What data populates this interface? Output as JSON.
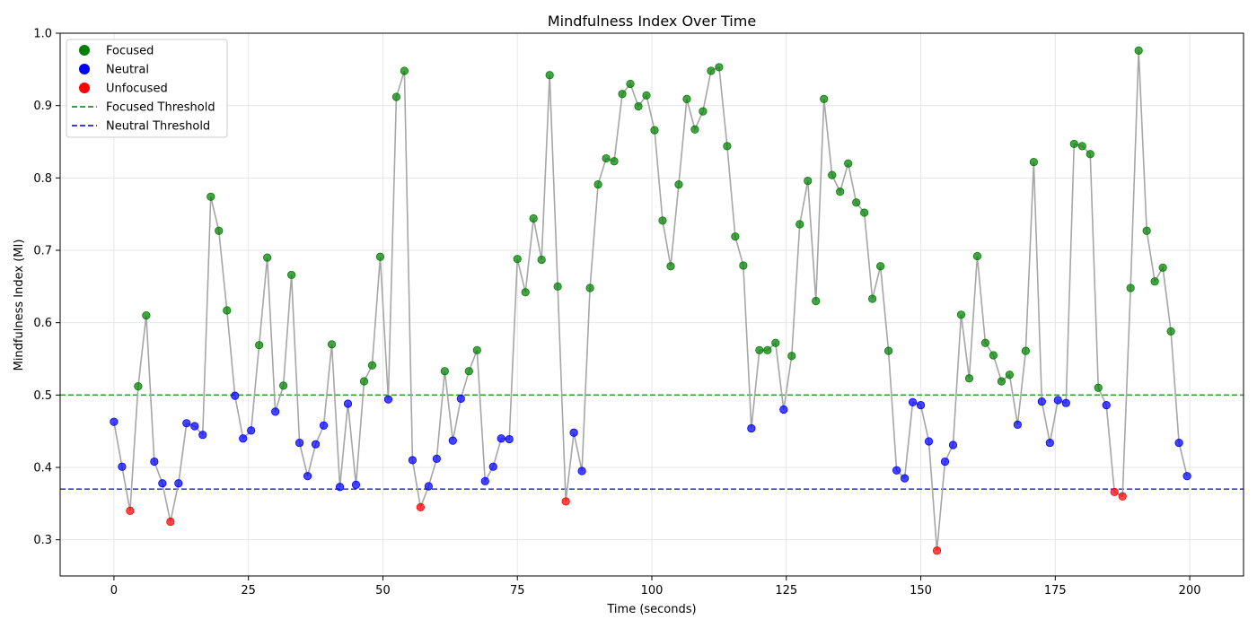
{
  "chart_data": {
    "type": "scatter",
    "title": "Mindfulness Index Over Time",
    "xlabel": "Time (seconds)",
    "ylabel": "Mindfulness Index (MI)",
    "xlim": [
      -10,
      210
    ],
    "ylim": [
      0.25,
      1.0
    ],
    "x_ticks": [
      0,
      25,
      50,
      75,
      100,
      125,
      150,
      175,
      200
    ],
    "y_ticks": [
      0.3,
      0.4,
      0.5,
      0.6,
      0.7,
      0.8,
      0.9,
      1.0
    ],
    "x_tick_labels": [
      "0",
      "25",
      "50",
      "75",
      "100",
      "125",
      "150",
      "175",
      "200"
    ],
    "y_tick_labels": [
      "0.3",
      "0.4",
      "0.5",
      "0.6",
      "0.7",
      "0.8",
      "0.9",
      "1.0"
    ],
    "grid": true,
    "legend_position": "top-left",
    "line_color": "#a6a6a6",
    "categories": {
      "focused": {
        "label": "Focused",
        "color": "#008000"
      },
      "neutral": {
        "label": "Neutral",
        "color": "#0000ff"
      },
      "unfocused": {
        "label": "Unfocused",
        "color": "#ff0000"
      }
    },
    "thresholds": [
      {
        "name": "Focused Threshold",
        "value": 0.5,
        "color": "#008000"
      },
      {
        "name": "Neutral Threshold",
        "value": 0.37,
        "color": "#0000c0"
      }
    ],
    "time_start": 0,
    "time_step": 1.5,
    "values": [
      0.463,
      0.401,
      0.34,
      0.512,
      0.61,
      0.408,
      0.378,
      0.325,
      0.378,
      0.461,
      0.457,
      0.445,
      0.774,
      0.727,
      0.617,
      0.499,
      0.44,
      0.451,
      0.569,
      0.69,
      0.477,
      0.513,
      0.666,
      0.434,
      0.388,
      0.432,
      0.458,
      0.57,
      0.373,
      0.488,
      0.376,
      0.519,
      0.541,
      0.691,
      0.494,
      0.912,
      0.948,
      0.41,
      0.345,
      0.374,
      0.412,
      0.533,
      0.437,
      0.495,
      0.533,
      0.562,
      0.381,
      0.401,
      0.44,
      0.439,
      0.688,
      0.642,
      0.744,
      0.687,
      0.942,
      0.65,
      0.353,
      0.448,
      0.395,
      0.648,
      0.791,
      0.827,
      0.823,
      0.916,
      0.93,
      0.899,
      0.914,
      0.866,
      0.741,
      0.678,
      0.791,
      0.909,
      0.867,
      0.892,
      0.948,
      0.953,
      0.844,
      0.719,
      0.679,
      0.454,
      0.562,
      0.562,
      0.572,
      0.48,
      0.554,
      0.736,
      0.796,
      0.63,
      0.909,
      0.804,
      0.781,
      0.82,
      0.766,
      0.752,
      0.633,
      0.678,
      0.561,
      0.396,
      0.385,
      0.49,
      0.486,
      0.436,
      0.285,
      0.408,
      0.431,
      0.611,
      0.523,
      0.692,
      0.572,
      0.555,
      0.519,
      0.528,
      0.459,
      0.561,
      0.822,
      0.491,
      0.434,
      0.493,
      0.489,
      0.847,
      0.844,
      0.833,
      0.51,
      0.486,
      0.366,
      0.36,
      0.648,
      0.976,
      0.727,
      0.657,
      0.676,
      0.588,
      0.434,
      0.388
    ],
    "legend_entries": [
      {
        "label": "Focused",
        "kind": "marker",
        "color": "#008000"
      },
      {
        "label": "Neutral",
        "kind": "marker",
        "color": "#0000ff"
      },
      {
        "label": "Unfocused",
        "kind": "marker",
        "color": "#ff0000"
      },
      {
        "label": "Focused Threshold",
        "kind": "dash",
        "color": "#008000"
      },
      {
        "label": "Neutral Threshold",
        "kind": "dash",
        "color": "#0000c0"
      }
    ]
  }
}
